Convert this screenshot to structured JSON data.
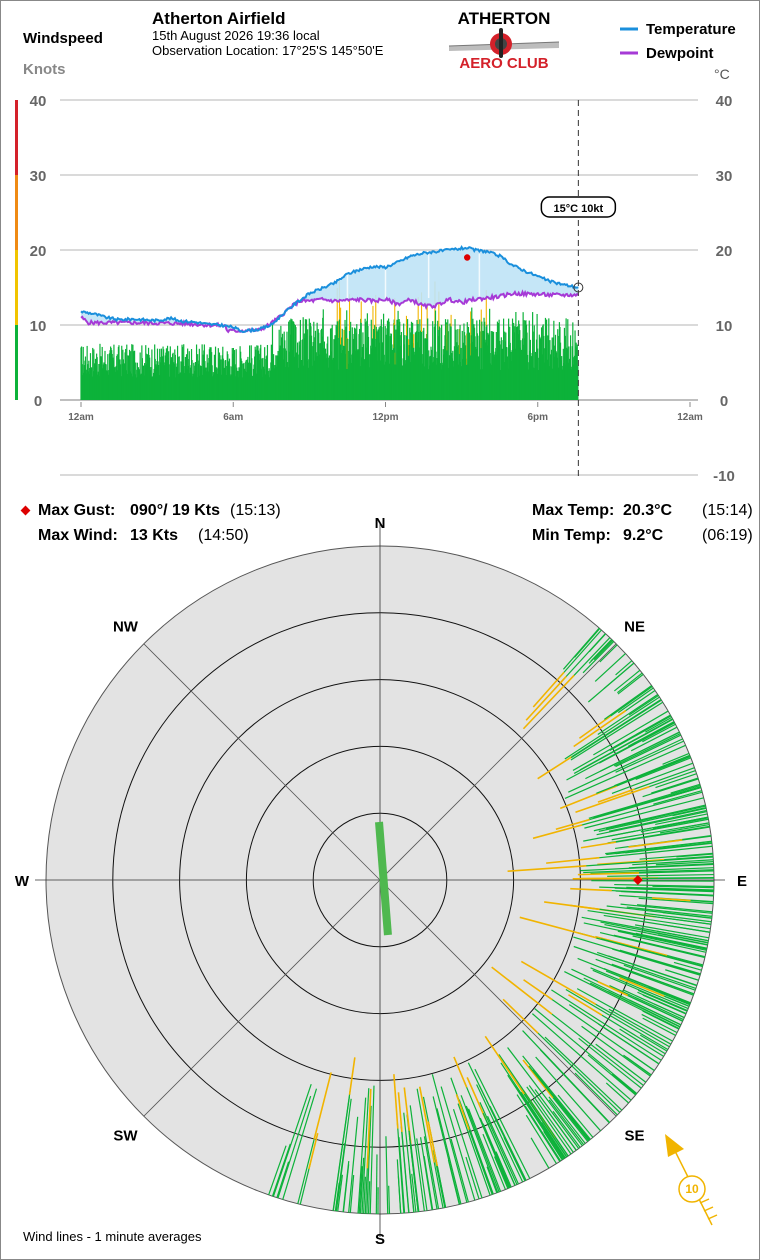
{
  "header": {
    "windspeed_label": "Windspeed",
    "knots_label": "Knots",
    "title": "Atherton Airfield",
    "datetime": "15th August 2026  19:36 local",
    "location": "Observation Location: 17°25'S 145°50'E",
    "logo_top": "ATHERTON",
    "logo_bottom": "AERO CLUB",
    "legend_temperature": "Temperature",
    "legend_dewpoint": "Dewpoint",
    "unit_celsius": "°C"
  },
  "colors": {
    "temperature": "#1a8fdc",
    "dewpoint": "#a63ad6",
    "wind": "#0db23a",
    "gust": "#f1b400",
    "fill": "#bfe3f6",
    "gust_marker": "#dd0000",
    "logo_red": "#d4212a"
  },
  "chart_data": {
    "type": "line",
    "x_ticks": [
      "12am",
      "6am",
      "12pm",
      "6pm",
      "12am"
    ],
    "y_left_ticks": [
      "0",
      "10",
      "20",
      "30",
      "40"
    ],
    "y_right_ticks": [
      "-10",
      "0",
      "10",
      "20",
      "30",
      "40"
    ],
    "x_range_hours": [
      0,
      24
    ],
    "y_left_range": [
      0,
      40
    ],
    "y_right_range": [
      -10,
      40
    ],
    "current_time_hours": 19.6,
    "current_readout": "15°C  10kt",
    "max_gust_marker": {
      "time_hours": 15.22,
      "value_kts": 19
    },
    "series": [
      {
        "name": "Temperature",
        "points": [
          [
            0,
            11.8
          ],
          [
            0.5,
            11.5
          ],
          [
            1,
            11.0
          ],
          [
            1.5,
            10.7
          ],
          [
            2,
            10.8
          ],
          [
            3,
            10.6
          ],
          [
            3.5,
            10.9
          ],
          [
            4,
            10.5
          ],
          [
            4.5,
            10.4
          ],
          [
            5,
            10.1
          ],
          [
            5.5,
            10.0
          ],
          [
            6,
            9.7
          ],
          [
            6.33,
            9.2
          ],
          [
            7,
            9.4
          ],
          [
            7.5,
            10.0
          ],
          [
            8,
            11.6
          ],
          [
            8.5,
            13.0
          ],
          [
            9,
            14.2
          ],
          [
            9.5,
            14.9
          ],
          [
            10,
            15.6
          ],
          [
            10.5,
            16.8
          ],
          [
            11,
            17.4
          ],
          [
            11.5,
            17.8
          ],
          [
            12,
            17.7
          ],
          [
            12.5,
            18.4
          ],
          [
            13,
            19.2
          ],
          [
            13.5,
            19.6
          ],
          [
            14,
            19.8
          ],
          [
            14.5,
            20.0
          ],
          [
            15.2,
            20.3
          ],
          [
            15.5,
            20.0
          ],
          [
            16,
            19.8
          ],
          [
            16.5,
            19.2
          ],
          [
            17,
            18.0
          ],
          [
            17.5,
            17.2
          ],
          [
            18,
            16.5
          ],
          [
            18.5,
            15.8
          ],
          [
            19,
            15.4
          ],
          [
            19.6,
            15.0
          ]
        ]
      },
      {
        "name": "Dewpoint",
        "points": [
          [
            0,
            11.0
          ],
          [
            0.3,
            10.3
          ],
          [
            2,
            10.3
          ],
          [
            4,
            10.2
          ],
          [
            5,
            10.0
          ],
          [
            5.7,
            9.9
          ],
          [
            5.75,
            9.2
          ],
          [
            7,
            9.3
          ],
          [
            7.4,
            10.0
          ],
          [
            7.8,
            11.0
          ],
          [
            8.2,
            12.2
          ],
          [
            8.6,
            13.2
          ],
          [
            9,
            13.2
          ],
          [
            9.5,
            13.4
          ],
          [
            10,
            13.2
          ],
          [
            11,
            13.4
          ],
          [
            11.5,
            13.2
          ],
          [
            12,
            13.4
          ],
          [
            12.5,
            12.8
          ],
          [
            13,
            13.4
          ],
          [
            13.5,
            12.5
          ],
          [
            14,
            12.6
          ],
          [
            14.5,
            13.4
          ],
          [
            15,
            13.0
          ],
          [
            15.5,
            13.4
          ],
          [
            16,
            13.6
          ],
          [
            16.5,
            13.8
          ],
          [
            17,
            14.2
          ],
          [
            18,
            14.1
          ],
          [
            18.5,
            14.0
          ],
          [
            19,
            14.0
          ],
          [
            19.6,
            14.0
          ]
        ]
      }
    ],
    "wind_summary": {
      "average_band_kts": [
        4,
        11
      ],
      "gusty_period_hours": [
        10,
        16
      ],
      "peak_gust_kts": 19
    }
  },
  "stats": {
    "max_gust_label": "Max Gust:",
    "max_gust_value": "090°/ 19 Kts",
    "max_gust_time": "(15:13)",
    "max_wind_label": "Max Wind:",
    "max_wind_value": "13 Kts",
    "max_wind_time": "(14:50)",
    "max_temp_label": "Max Temp:",
    "max_temp_value": "20.3°C",
    "max_temp_time": "(15:14)",
    "min_temp_label": "Min Temp:",
    "min_temp_value": "9.2°C",
    "min_temp_time": "(06:19)"
  },
  "rose": {
    "compass": [
      "N",
      "NE",
      "E",
      "SE",
      "S",
      "SW",
      "W",
      "NW"
    ],
    "ring_max_kts": 25,
    "wind_sector_deg": [
      40,
      200
    ],
    "max_gust_dir_deg": 90,
    "max_gust_kts": 19,
    "current_dir_deg": 160,
    "current_speed_label": "10",
    "footnote": "Wind lines - 1 minute averages"
  }
}
